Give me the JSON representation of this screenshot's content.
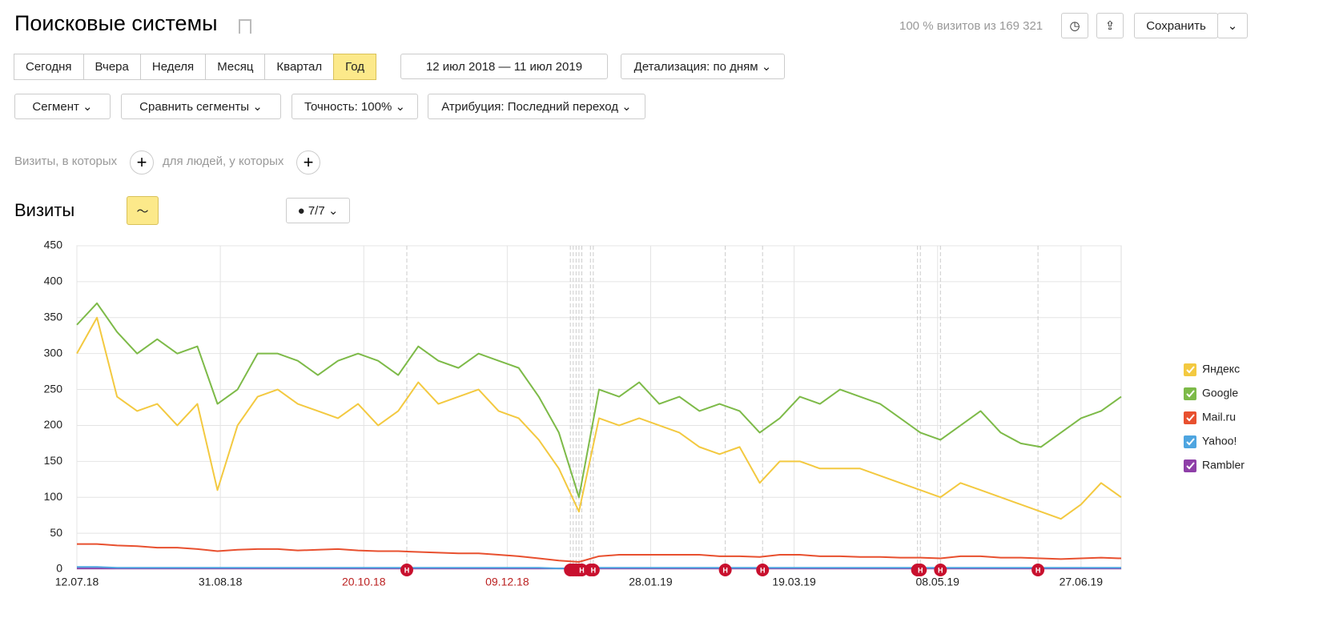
{
  "header": {
    "title": "Поисковые системы",
    "share": "100 % визитов из 169 321",
    "save": "Сохранить"
  },
  "periods": [
    "Сегодня",
    "Вчера",
    "Неделя",
    "Месяц",
    "Квартал",
    "Год"
  ],
  "date_range": "12 июл 2018 — 11 июл 2019",
  "detail": "Детализация: по дням",
  "filters": [
    "Сегмент",
    "Сравнить сегменты",
    "Точность: 100%",
    "Атрибуция: Последний переход"
  ],
  "conditions": [
    "Визиты, в которых",
    "для людей, у которых"
  ],
  "section": {
    "title": "Визиты",
    "annotations": "7/7"
  },
  "chart_data": {
    "type": "line",
    "x": [
      "12.07.18",
      "19.07.18",
      "26.07.18",
      "02.08.18",
      "09.08.18",
      "16.08.18",
      "23.08.18",
      "30.08.18",
      "06.09.18",
      "13.09.18",
      "20.09.18",
      "27.09.18",
      "04.10.18",
      "11.10.18",
      "18.10.18",
      "25.10.18",
      "01.11.18",
      "08.11.18",
      "15.11.18",
      "22.11.18",
      "29.11.18",
      "06.12.18",
      "13.12.18",
      "20.12.18",
      "27.12.18",
      "03.01.19",
      "10.01.19",
      "17.01.19",
      "24.01.19",
      "31.01.19",
      "07.02.19",
      "14.02.19",
      "21.02.19",
      "28.02.19",
      "07.03.19",
      "14.03.19",
      "21.03.19",
      "28.03.19",
      "04.04.19",
      "11.04.19",
      "18.04.19",
      "25.04.19",
      "02.05.19",
      "09.05.19",
      "16.05.19",
      "23.05.19",
      "30.05.19",
      "06.06.19",
      "13.06.19",
      "20.06.19",
      "27.06.19",
      "04.07.19",
      "11.07.19"
    ],
    "series": [
      {
        "name": "Яндекс",
        "color": "#f3c940",
        "values": [
          300,
          350,
          240,
          220,
          230,
          200,
          230,
          110,
          200,
          240,
          250,
          230,
          220,
          210,
          230,
          200,
          220,
          260,
          230,
          240,
          250,
          220,
          210,
          180,
          140,
          80,
          210,
          200,
          210,
          200,
          190,
          170,
          160,
          170,
          120,
          150,
          150,
          140,
          140,
          140,
          130,
          120,
          110,
          100,
          120,
          110,
          100,
          90,
          80,
          70,
          90,
          120,
          100
        ]
      },
      {
        "name": "Google",
        "color": "#7dba48",
        "values": [
          340,
          370,
          330,
          300,
          320,
          300,
          310,
          230,
          250,
          300,
          300,
          290,
          270,
          290,
          300,
          290,
          270,
          310,
          290,
          280,
          300,
          290,
          280,
          240,
          190,
          100,
          250,
          240,
          260,
          230,
          240,
          220,
          230,
          220,
          190,
          210,
          240,
          230,
          250,
          240,
          230,
          210,
          190,
          180,
          200,
          220,
          190,
          175,
          170,
          190,
          210,
          220,
          240
        ]
      },
      {
        "name": "Mail.ru",
        "color": "#e8502f",
        "values": [
          35,
          35,
          33,
          32,
          30,
          30,
          28,
          25,
          27,
          28,
          28,
          26,
          27,
          28,
          26,
          25,
          25,
          24,
          23,
          22,
          22,
          20,
          18,
          15,
          12,
          10,
          18,
          20,
          20,
          20,
          20,
          20,
          18,
          18,
          17,
          20,
          20,
          18,
          18,
          17,
          17,
          16,
          16,
          15,
          18,
          18,
          16,
          16,
          15,
          14,
          15,
          16,
          15
        ]
      },
      {
        "name": "Yahoo!",
        "color": "#4ea5e0",
        "values": [
          3,
          3,
          2,
          2,
          2,
          2,
          2,
          2,
          2,
          2,
          2,
          2,
          2,
          2,
          2,
          2,
          2,
          2,
          2,
          2,
          2,
          2,
          2,
          2,
          1,
          1,
          2,
          2,
          2,
          2,
          2,
          2,
          2,
          2,
          2,
          2,
          2,
          2,
          2,
          2,
          2,
          2,
          2,
          2,
          2,
          2,
          2,
          2,
          2,
          2,
          2,
          2,
          2
        ]
      },
      {
        "name": "Rambler",
        "color": "#8e3fa8",
        "values": [
          1,
          1,
          1,
          1,
          1,
          1,
          1,
          1,
          1,
          1,
          1,
          1,
          1,
          1,
          1,
          1,
          1,
          1,
          1,
          1,
          1,
          1,
          1,
          1,
          1,
          1,
          1,
          1,
          1,
          1,
          1,
          1,
          1,
          1,
          1,
          1,
          1,
          1,
          1,
          1,
          1,
          1,
          1,
          1,
          1,
          1,
          1,
          1,
          1,
          1,
          1,
          1,
          1
        ]
      }
    ],
    "xlim": [
      "12.07.18",
      "11.07.19"
    ],
    "xticks": [
      "12.07.18",
      "31.08.18",
      "20.10.18",
      "09.12.18",
      "28.01.19",
      "19.03.19",
      "08.05.19",
      "27.06.19"
    ],
    "xtick_colors": [
      "#222",
      "#222",
      "#b22",
      "#b22",
      "#222",
      "#222",
      "#222",
      "#222"
    ],
    "ylim": [
      0,
      450
    ],
    "yticks": [
      0,
      50,
      100,
      150,
      200,
      250,
      300,
      350,
      400,
      450
    ],
    "grid": true,
    "holiday_label": "Н",
    "holidays": [
      "04.11.18",
      "31.12.18",
      "01.01.19",
      "02.01.19",
      "03.01.19",
      "04.01.19",
      "07.01.19",
      "08.01.19",
      "23.02.19",
      "08.03.19",
      "01.05.19",
      "02.05.19",
      "09.05.19",
      "12.06.19"
    ]
  }
}
